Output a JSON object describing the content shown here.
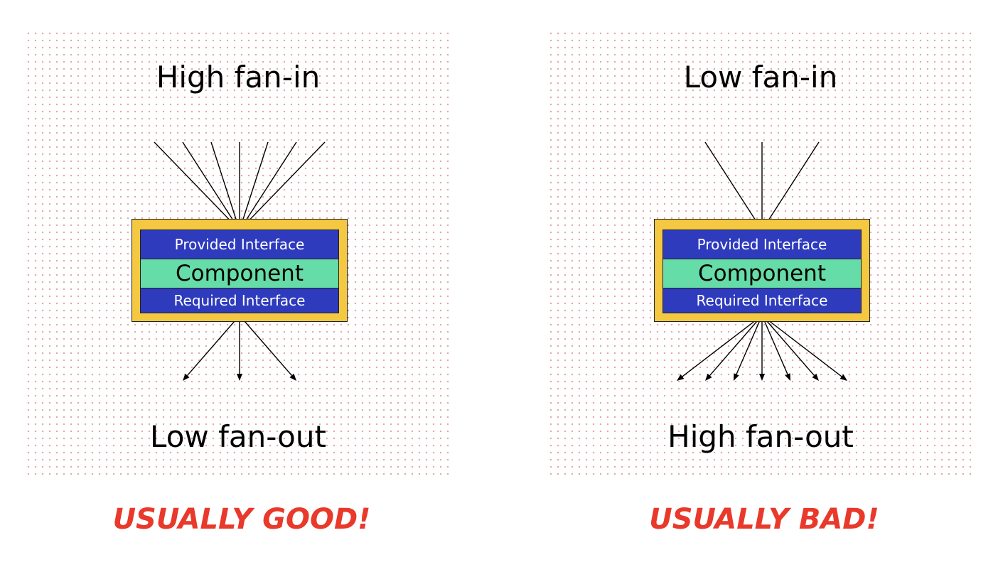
{
  "left": {
    "fan_in_label": "High fan-in",
    "fan_out_label": "Low fan-out",
    "provided_interface": "Provided Interface",
    "component": "Component",
    "required_interface": "Required Interface",
    "verdict": "USUALLY GOOD!",
    "incoming_arrows": 7,
    "outgoing_arrows": 3
  },
  "right": {
    "fan_in_label": "Low fan-in",
    "fan_out_label": "High fan-out",
    "provided_interface": "Provided Interface",
    "component": "Component",
    "required_interface": "Required Interface",
    "verdict": "USUALLY BAD!",
    "incoming_arrows": 3,
    "outgoing_arrows": 7
  },
  "colors": {
    "interface": "#2f3bbd",
    "component": "#66dca8",
    "frame": "#f5c842",
    "verdict": "#e8392b",
    "dots": "#e9a7a7"
  }
}
